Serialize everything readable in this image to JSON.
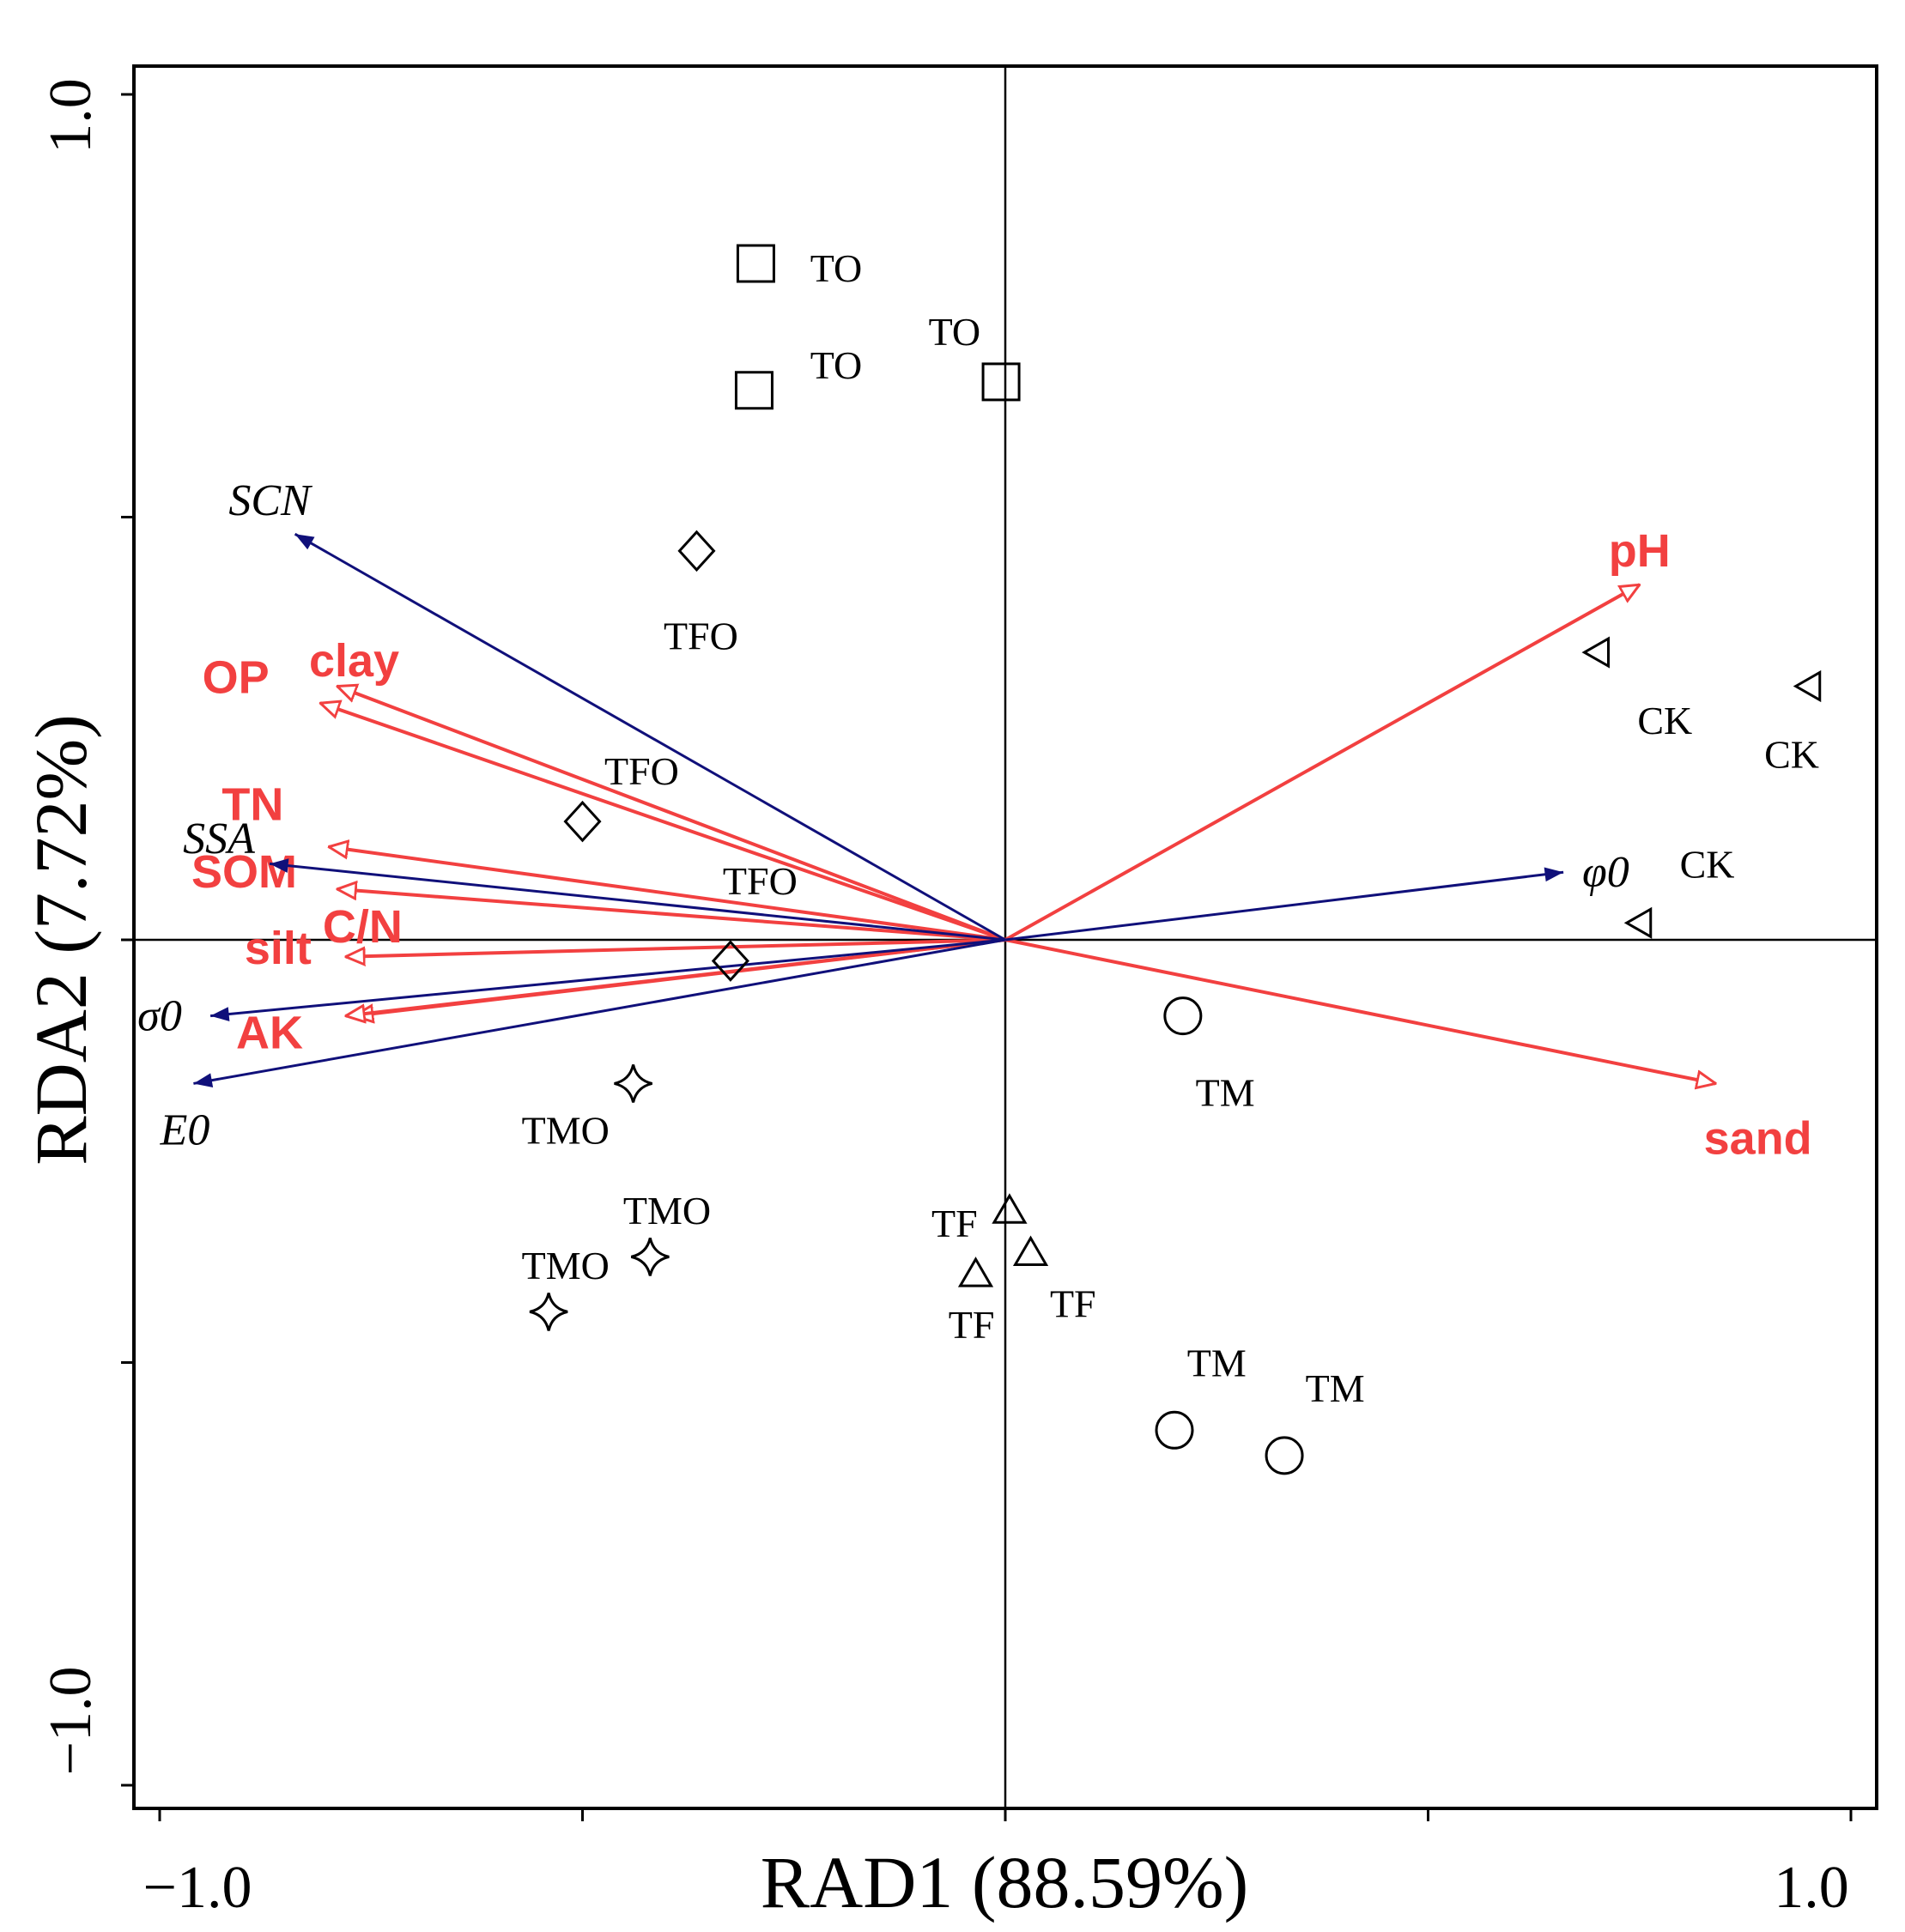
{
  "chart_data": {
    "type": "scatter",
    "subtype": "rda-biplot",
    "title": "",
    "xlabel": "RAD1 (88.59%)",
    "ylabel": "RDA2 (7.72%)",
    "xlim": [
      -1.0,
      1.0
    ],
    "ylim": [
      -1.0,
      1.0
    ],
    "xtick_labels": [
      "−1.0",
      "1.0"
    ],
    "ytick_labels": [
      "1.0",
      "−1.0"
    ],
    "colors": {
      "env": "#f24040",
      "response": "#10107a",
      "axis": "#000000",
      "marker": "#000000"
    },
    "env_vectors": [
      {
        "name": "pH",
        "x": 0.75,
        "y": 0.42
      },
      {
        "name": "sand",
        "x": 0.84,
        "y": -0.17
      },
      {
        "name": "clay",
        "x": -0.79,
        "y": 0.3
      },
      {
        "name": "OP",
        "x": -0.81,
        "y": 0.28
      },
      {
        "name": "TN",
        "x": -0.8,
        "y": 0.11
      },
      {
        "name": "SOM",
        "x": -0.79,
        "y": 0.06
      },
      {
        "name": "C/N",
        "x": -0.78,
        "y": -0.02
      },
      {
        "name": "silt",
        "x": -0.77,
        "y": -0.09
      },
      {
        "name": "AK",
        "x": -0.78,
        "y": -0.09
      }
    ],
    "env_label_offsets_note": "labels placed near arrow heads",
    "response_vectors": [
      {
        "name": "SCN",
        "x": -0.84,
        "y": 0.48
      },
      {
        "name": "SSA",
        "x": -0.87,
        "y": 0.09
      },
      {
        "name": "φ0",
        "x": 0.66,
        "y": 0.08
      },
      {
        "name": "σ0",
        "x": -0.94,
        "y": -0.09
      },
      {
        "name": "E0",
        "x": -0.96,
        "y": -0.17
      }
    ],
    "sites": [
      {
        "group": "TO",
        "marker": "square",
        "x": -0.295,
        "y": 0.8
      },
      {
        "group": "TO",
        "marker": "square",
        "x": -0.297,
        "y": 0.65
      },
      {
        "group": "TO",
        "marker": "square",
        "x": -0.005,
        "y": 0.66
      },
      {
        "group": "TFO",
        "marker": "diamond",
        "x": -0.365,
        "y": 0.46
      },
      {
        "group": "TFO",
        "marker": "diamond",
        "x": -0.5,
        "y": 0.14
      },
      {
        "group": "TFO",
        "marker": "diamond",
        "x": -0.325,
        "y": -0.025
      },
      {
        "group": "CK",
        "marker": "triangle-left",
        "x": 0.7,
        "y": 0.34
      },
      {
        "group": "CK",
        "marker": "triangle-left",
        "x": 0.95,
        "y": 0.3
      },
      {
        "group": "CK",
        "marker": "triangle-left",
        "x": 0.75,
        "y": 0.02
      },
      {
        "group": "TM",
        "marker": "circle",
        "x": 0.21,
        "y": -0.09
      },
      {
        "group": "TM",
        "marker": "circle",
        "x": 0.2,
        "y": -0.58
      },
      {
        "group": "TM",
        "marker": "circle",
        "x": 0.33,
        "y": -0.61
      },
      {
        "group": "TMO",
        "marker": "star",
        "x": -0.44,
        "y": -0.17
      },
      {
        "group": "TMO",
        "marker": "star",
        "x": -0.42,
        "y": -0.375
      },
      {
        "group": "TMO",
        "marker": "star",
        "x": -0.54,
        "y": -0.44
      },
      {
        "group": "TF",
        "marker": "triangle-up",
        "x": 0.005,
        "y": -0.32
      },
      {
        "group": "TF",
        "marker": "triangle-up",
        "x": 0.03,
        "y": -0.37
      },
      {
        "group": "TF",
        "marker": "triangle-up",
        "x": -0.035,
        "y": -0.395
      }
    ],
    "site_labels": [
      {
        "text": "TO",
        "x": -0.2,
        "y": 0.795
      },
      {
        "text": "TO",
        "x": -0.2,
        "y": 0.68
      },
      {
        "text": "TO",
        "x": -0.06,
        "y": 0.72
      },
      {
        "text": "TFO",
        "x": -0.36,
        "y": 0.36
      },
      {
        "text": "TFO",
        "x": -0.43,
        "y": 0.2
      },
      {
        "text": "TFO",
        "x": -0.29,
        "y": 0.07
      },
      {
        "text": "CK",
        "x": 0.78,
        "y": 0.26
      },
      {
        "text": "CK",
        "x": 0.93,
        "y": 0.22
      },
      {
        "text": "CK",
        "x": 0.83,
        "y": 0.09
      },
      {
        "text": "TM",
        "x": 0.26,
        "y": -0.18
      },
      {
        "text": "TM",
        "x": 0.25,
        "y": -0.5
      },
      {
        "text": "TM",
        "x": 0.39,
        "y": -0.53
      },
      {
        "text": "TMO",
        "x": -0.52,
        "y": -0.225
      },
      {
        "text": "TMO",
        "x": -0.4,
        "y": -0.32
      },
      {
        "text": "TMO",
        "x": -0.52,
        "y": -0.385
      },
      {
        "text": "TF",
        "x": -0.06,
        "y": -0.335
      },
      {
        "text": "TF",
        "x": 0.08,
        "y": -0.43
      },
      {
        "text": "TF",
        "x": -0.04,
        "y": -0.455
      }
    ]
  }
}
